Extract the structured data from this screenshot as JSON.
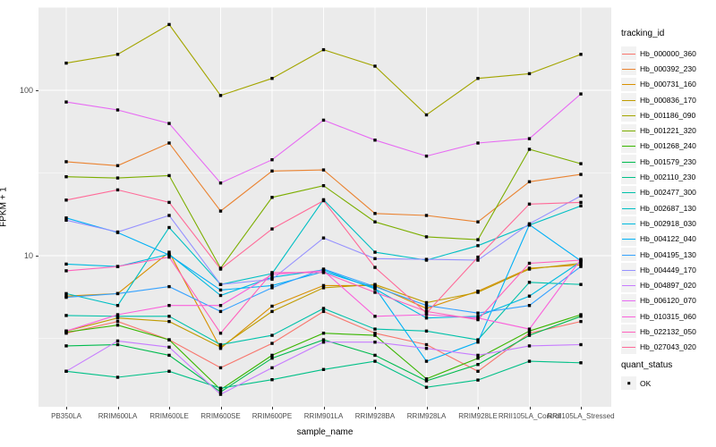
{
  "chart_data": {
    "type": "line",
    "title": "",
    "xlabel": "sample_name",
    "ylabel": "FPKM + 1",
    "y_scale": "log10",
    "y_ticks": [
      100,
      10
    ],
    "y_grid_minor": [
      316.23,
      31.62,
      3.162
    ],
    "ylim": [
      1.2,
      330
    ],
    "grid": true,
    "marker": {
      "shape": "square",
      "color": "#000000",
      "size": 3.4
    },
    "legend": {
      "title": "tracking_id",
      "position": "right"
    },
    "quant_legend": {
      "title": "quant_status",
      "items": [
        {
          "label": "OK",
          "shape": "square",
          "color": "#000000"
        }
      ]
    },
    "categories": [
      "PB350LA",
      "RRIM600LA",
      "RRIM600LE",
      "RRIM600SE",
      "RRIM600PE",
      "RRIM901LA",
      "RRIM928BA",
      "RRIM928LA",
      "RRIM928LE",
      "RRII105LA_Control",
      "RRII105LA_Stressed"
    ],
    "series": [
      {
        "name": "Hb_000000_360",
        "color": "#F8766D",
        "values": [
          3.4,
          4.0,
          3.1,
          2.1,
          2.95,
          4.6,
          3.4,
          2.9,
          2.0,
          3.4,
          4.0
        ]
      },
      {
        "name": "Hb_000392_230",
        "color": "#EA8331",
        "values": [
          37,
          35,
          48,
          18.6,
          32.5,
          33,
          18,
          17.5,
          16,
          28,
          31
        ]
      },
      {
        "name": "Hb_000731_160",
        "color": "#D89000",
        "values": [
          5.7,
          5.9,
          10.5,
          2.75,
          4.95,
          6.6,
          6.6,
          4.8,
          6.1,
          8.4,
          8.8
        ]
      },
      {
        "name": "Hb_000836_170",
        "color": "#C09B00",
        "values": [
          3.5,
          4.2,
          4.0,
          2.8,
          4.6,
          6.4,
          6.7,
          5.2,
          6.0,
          8.3,
          9.0
        ]
      },
      {
        "name": "Hb_001186_090",
        "color": "#A3A500",
        "values": [
          146,
          165,
          250,
          93,
          118,
          176,
          140,
          71,
          118,
          126,
          165
        ]
      },
      {
        "name": "Hb_001221_320",
        "color": "#7CAE00",
        "values": [
          30,
          29.5,
          30.5,
          8.4,
          22.5,
          26.5,
          16,
          13,
          12.5,
          44,
          36
        ]
      },
      {
        "name": "Hb_001268_240",
        "color": "#39B600",
        "values": [
          3.45,
          3.8,
          3.1,
          1.55,
          2.5,
          3.4,
          3.3,
          1.8,
          2.4,
          3.5,
          4.4
        ]
      },
      {
        "name": "Hb_001579_230",
        "color": "#00BB4E",
        "values": [
          2.85,
          2.9,
          2.5,
          1.5,
          2.4,
          3.1,
          2.5,
          1.75,
          2.2,
          3.3,
          4.3
        ]
      },
      {
        "name": "Hb_002110_230",
        "color": "#00C087",
        "values": [
          2.0,
          1.84,
          2.0,
          1.58,
          1.78,
          2.05,
          2.3,
          1.6,
          1.77,
          2.3,
          2.25
        ]
      },
      {
        "name": "Hb_002477_300",
        "color": "#00C1A9",
        "values": [
          4.35,
          4.3,
          4.3,
          2.9,
          3.3,
          4.8,
          3.6,
          3.5,
          3.1,
          6.9,
          6.7
        ]
      },
      {
        "name": "Hb_002687_130",
        "color": "#00BFC4",
        "values": [
          5.9,
          5.0,
          14.8,
          6.7,
          7.8,
          21.8,
          10.5,
          9.4,
          11.5,
          15.3,
          20
        ]
      },
      {
        "name": "Hb_002918_030",
        "color": "#00BAE0",
        "values": [
          8.9,
          8.6,
          10.2,
          5.75,
          7.4,
          8.2,
          6.3,
          4.2,
          4.3,
          5.7,
          9.2
        ]
      },
      {
        "name": "Hb_004122_040",
        "color": "#00B0F6",
        "values": [
          16.9,
          13.8,
          10.1,
          6.2,
          6.6,
          8.0,
          6.4,
          2.3,
          3.0,
          15.4,
          9.3
        ]
      },
      {
        "name": "Hb_004195_130",
        "color": "#35A2FF",
        "values": [
          5.6,
          5.9,
          6.5,
          4.6,
          6.4,
          8.3,
          6.5,
          5.0,
          4.5,
          5.0,
          8.6
        ]
      },
      {
        "name": "Hb_004449_170",
        "color": "#9590FF",
        "values": [
          16.4,
          13.9,
          17.5,
          6.7,
          7.2,
          12.8,
          9.6,
          9.5,
          9.4,
          15.6,
          23
        ]
      },
      {
        "name": "Hb_004897_020",
        "color": "#C77CFF",
        "values": [
          2.0,
          3.05,
          2.8,
          1.45,
          2.1,
          3.0,
          3.0,
          2.75,
          2.5,
          2.85,
          2.9
        ]
      },
      {
        "name": "Hb_006120_070",
        "color": "#E76BF3",
        "values": [
          85,
          76,
          63,
          27.5,
          38,
          66,
          50,
          40,
          48,
          51,
          95
        ]
      },
      {
        "name": "Hb_010315_060",
        "color": "#FA62DB",
        "values": [
          3.5,
          4.4,
          5.0,
          5.0,
          7.7,
          8.1,
          4.3,
          4.4,
          4.2,
          3.6,
          9.5
        ]
      },
      {
        "name": "Hb_022132_050",
        "color": "#FF62BC",
        "values": [
          8.1,
          8.6,
          9.8,
          3.4,
          7.9,
          7.9,
          6.0,
          4.6,
          4.1,
          9.0,
          9.4
        ]
      },
      {
        "name": "Hb_027043_020",
        "color": "#FF6A98",
        "values": [
          21.7,
          25,
          21,
          8.3,
          14.5,
          21.5,
          8.5,
          4.5,
          9.8,
          20.5,
          21
        ]
      }
    ]
  },
  "panel": {
    "bg": "#EBEBEB",
    "grid_major": "#FFFFFF",
    "grid_minor": "#FFFFFF",
    "tick_color": "#333333",
    "tick_text": "#4D4D4D"
  }
}
